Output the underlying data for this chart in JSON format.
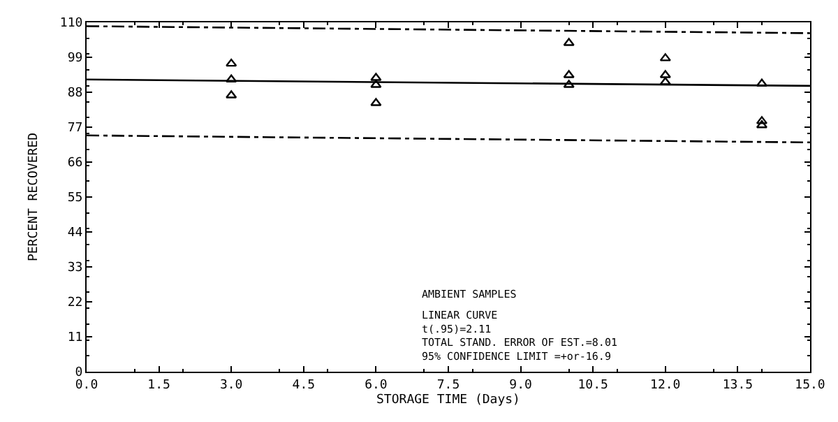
{
  "chart_data": {
    "type": "scatter",
    "xlabel": "STORAGE TIME (Days)",
    "ylabel": "PERCENT RECOVERED",
    "xlim": [
      0,
      15
    ],
    "xticks": [
      {
        "value": 0,
        "label": "0.0"
      },
      {
        "value": 1.5,
        "label": "1.5"
      },
      {
        "value": 3,
        "label": "3.0"
      },
      {
        "value": 4.5,
        "label": "4.5"
      },
      {
        "value": 6,
        "label": "6.0"
      },
      {
        "value": 7.5,
        "label": "7.5"
      },
      {
        "value": 9,
        "label": "9.0"
      },
      {
        "value": 10.5,
        "label": "10.5"
      },
      {
        "value": 12,
        "label": "12.0"
      },
      {
        "value": 13.5,
        "label": "13.5"
      },
      {
        "value": 15,
        "label": "15.0"
      }
    ],
    "ylim": [
      0,
      110
    ],
    "yticks": [
      0,
      11,
      22,
      33,
      44,
      55,
      66,
      77,
      88,
      99,
      110
    ],
    "grid": false,
    "legend": false,
    "series": [
      {
        "marker": "triangle",
        "color": "#000000",
        "x": [
          3,
          3,
          3,
          6,
          6,
          6,
          10,
          10,
          10,
          12,
          12,
          12,
          14,
          14,
          14
        ],
        "values": [
          97,
          92,
          87,
          92.5,
          90.3,
          84.6,
          103.5,
          93.4,
          90.3,
          98.7,
          93.4,
          91.2,
          90.7,
          78.9,
          77.6
        ]
      },
      {
        "type": "line",
        "color": "#000000",
        "line_style": "solid",
        "x": [
          0,
          15
        ],
        "values": [
          92,
          90
        ]
      },
      {
        "type": "line",
        "color": "#000000",
        "line_style": "dashed",
        "x": [
          0,
          15
        ],
        "values": [
          108.8,
          106.6
        ]
      },
      {
        "type": "line",
        "color": "#000000",
        "line_style": "dashed",
        "x": [
          0,
          15
        ],
        "values": [
          74.4,
          72.2
        ]
      }
    ],
    "annotations": [
      "AMBIENT SAMPLES",
      "LINEAR CURVE\nt(.95)=2.11\nTOTAL STAND. ERROR OF EST.=8.01\n95% CONFIDENCE LIMIT =+or-16.9"
    ]
  }
}
